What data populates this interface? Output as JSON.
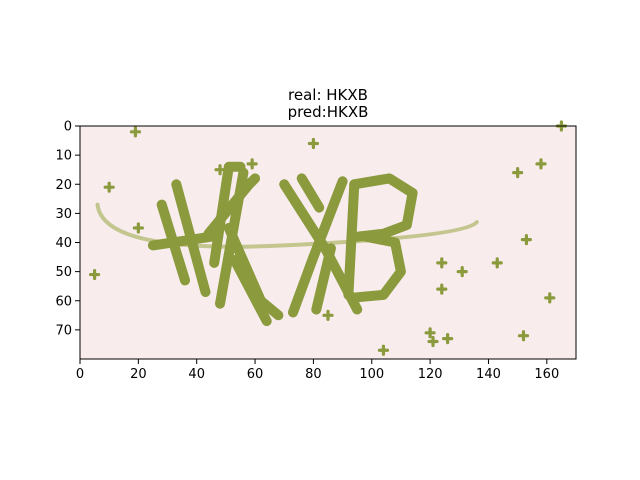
{
  "chart_data": {
    "type": "image",
    "title_lines": [
      "real: HKXB",
      "pred:HKXB"
    ],
    "image_text": "HKXB",
    "xlim": [
      0,
      170
    ],
    "ylim": [
      80,
      0
    ],
    "y_inverted": true,
    "x_ticks": [
      0,
      20,
      40,
      60,
      80,
      100,
      120,
      140,
      160
    ],
    "y_ticks": [
      0,
      10,
      20,
      30,
      40,
      50,
      60,
      70
    ],
    "grid": false,
    "colors": {
      "background": "#f8ecec",
      "ink": "#8a9a3c",
      "ink_dark": "#6f8330",
      "arc": "#c4c690"
    },
    "noise_points": [
      [
        19,
        2
      ],
      [
        80,
        6
      ],
      [
        10,
        21
      ],
      [
        20,
        35
      ],
      [
        5,
        51
      ],
      [
        165,
        0
      ],
      [
        158,
        13
      ],
      [
        150,
        16
      ],
      [
        153,
        39
      ],
      [
        143,
        47
      ],
      [
        131,
        50
      ],
      [
        124,
        47
      ],
      [
        124,
        56
      ],
      [
        161,
        59
      ],
      [
        120,
        71
      ],
      [
        121,
        74
      ],
      [
        126,
        73
      ],
      [
        152,
        72
      ],
      [
        104,
        77
      ],
      [
        59,
        13
      ],
      [
        48,
        15
      ],
      [
        85,
        65
      ]
    ]
  }
}
